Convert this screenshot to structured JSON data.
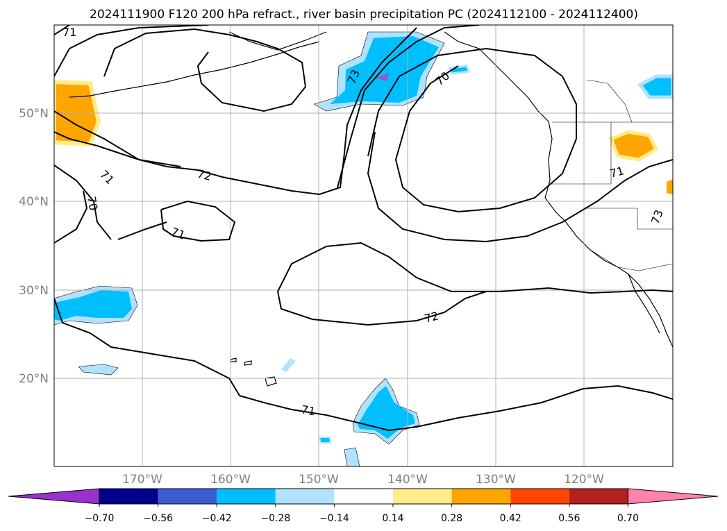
{
  "title": "2024111900 F120 200 hPa refract., river basin precipitation PC (2024112100 - 2024112400)",
  "map": {
    "lat_ticks": [
      "50°N",
      "40°N",
      "30°N",
      "20°N"
    ],
    "lon_ticks": [
      "170°W",
      "160°W",
      "150°W",
      "140°W",
      "130°W",
      "120°W"
    ],
    "grid": true,
    "land_color": "#ffffff",
    "coast_color": "#000000"
  },
  "contours": {
    "color": "#000000",
    "labels": [
      "71",
      "71",
      "70",
      "72",
      "71",
      "73",
      "70",
      "72",
      "71",
      "73",
      "71"
    ]
  },
  "colorbar": {
    "ticks": [
      "−0.70",
      "−0.56",
      "−0.42",
      "−0.28",
      "−0.14",
      "0.14",
      "0.28",
      "0.42",
      "0.56",
      "0.70"
    ],
    "colors": [
      "#9932cc",
      "#00008b",
      "#3a5fcd",
      "#00bfff",
      "#b0e2ff",
      "#ffffff",
      "#ffec8b",
      "#ffa500",
      "#ff4500",
      "#b22222",
      "#ff82ab"
    ]
  },
  "fill_colors": {
    "neg_light": "#b0e2ff",
    "neg_mid": "#00bfff",
    "neg_strong": "#8a5fcd",
    "pos_light": "#ffec8b",
    "pos_mid": "#ffa500"
  }
}
